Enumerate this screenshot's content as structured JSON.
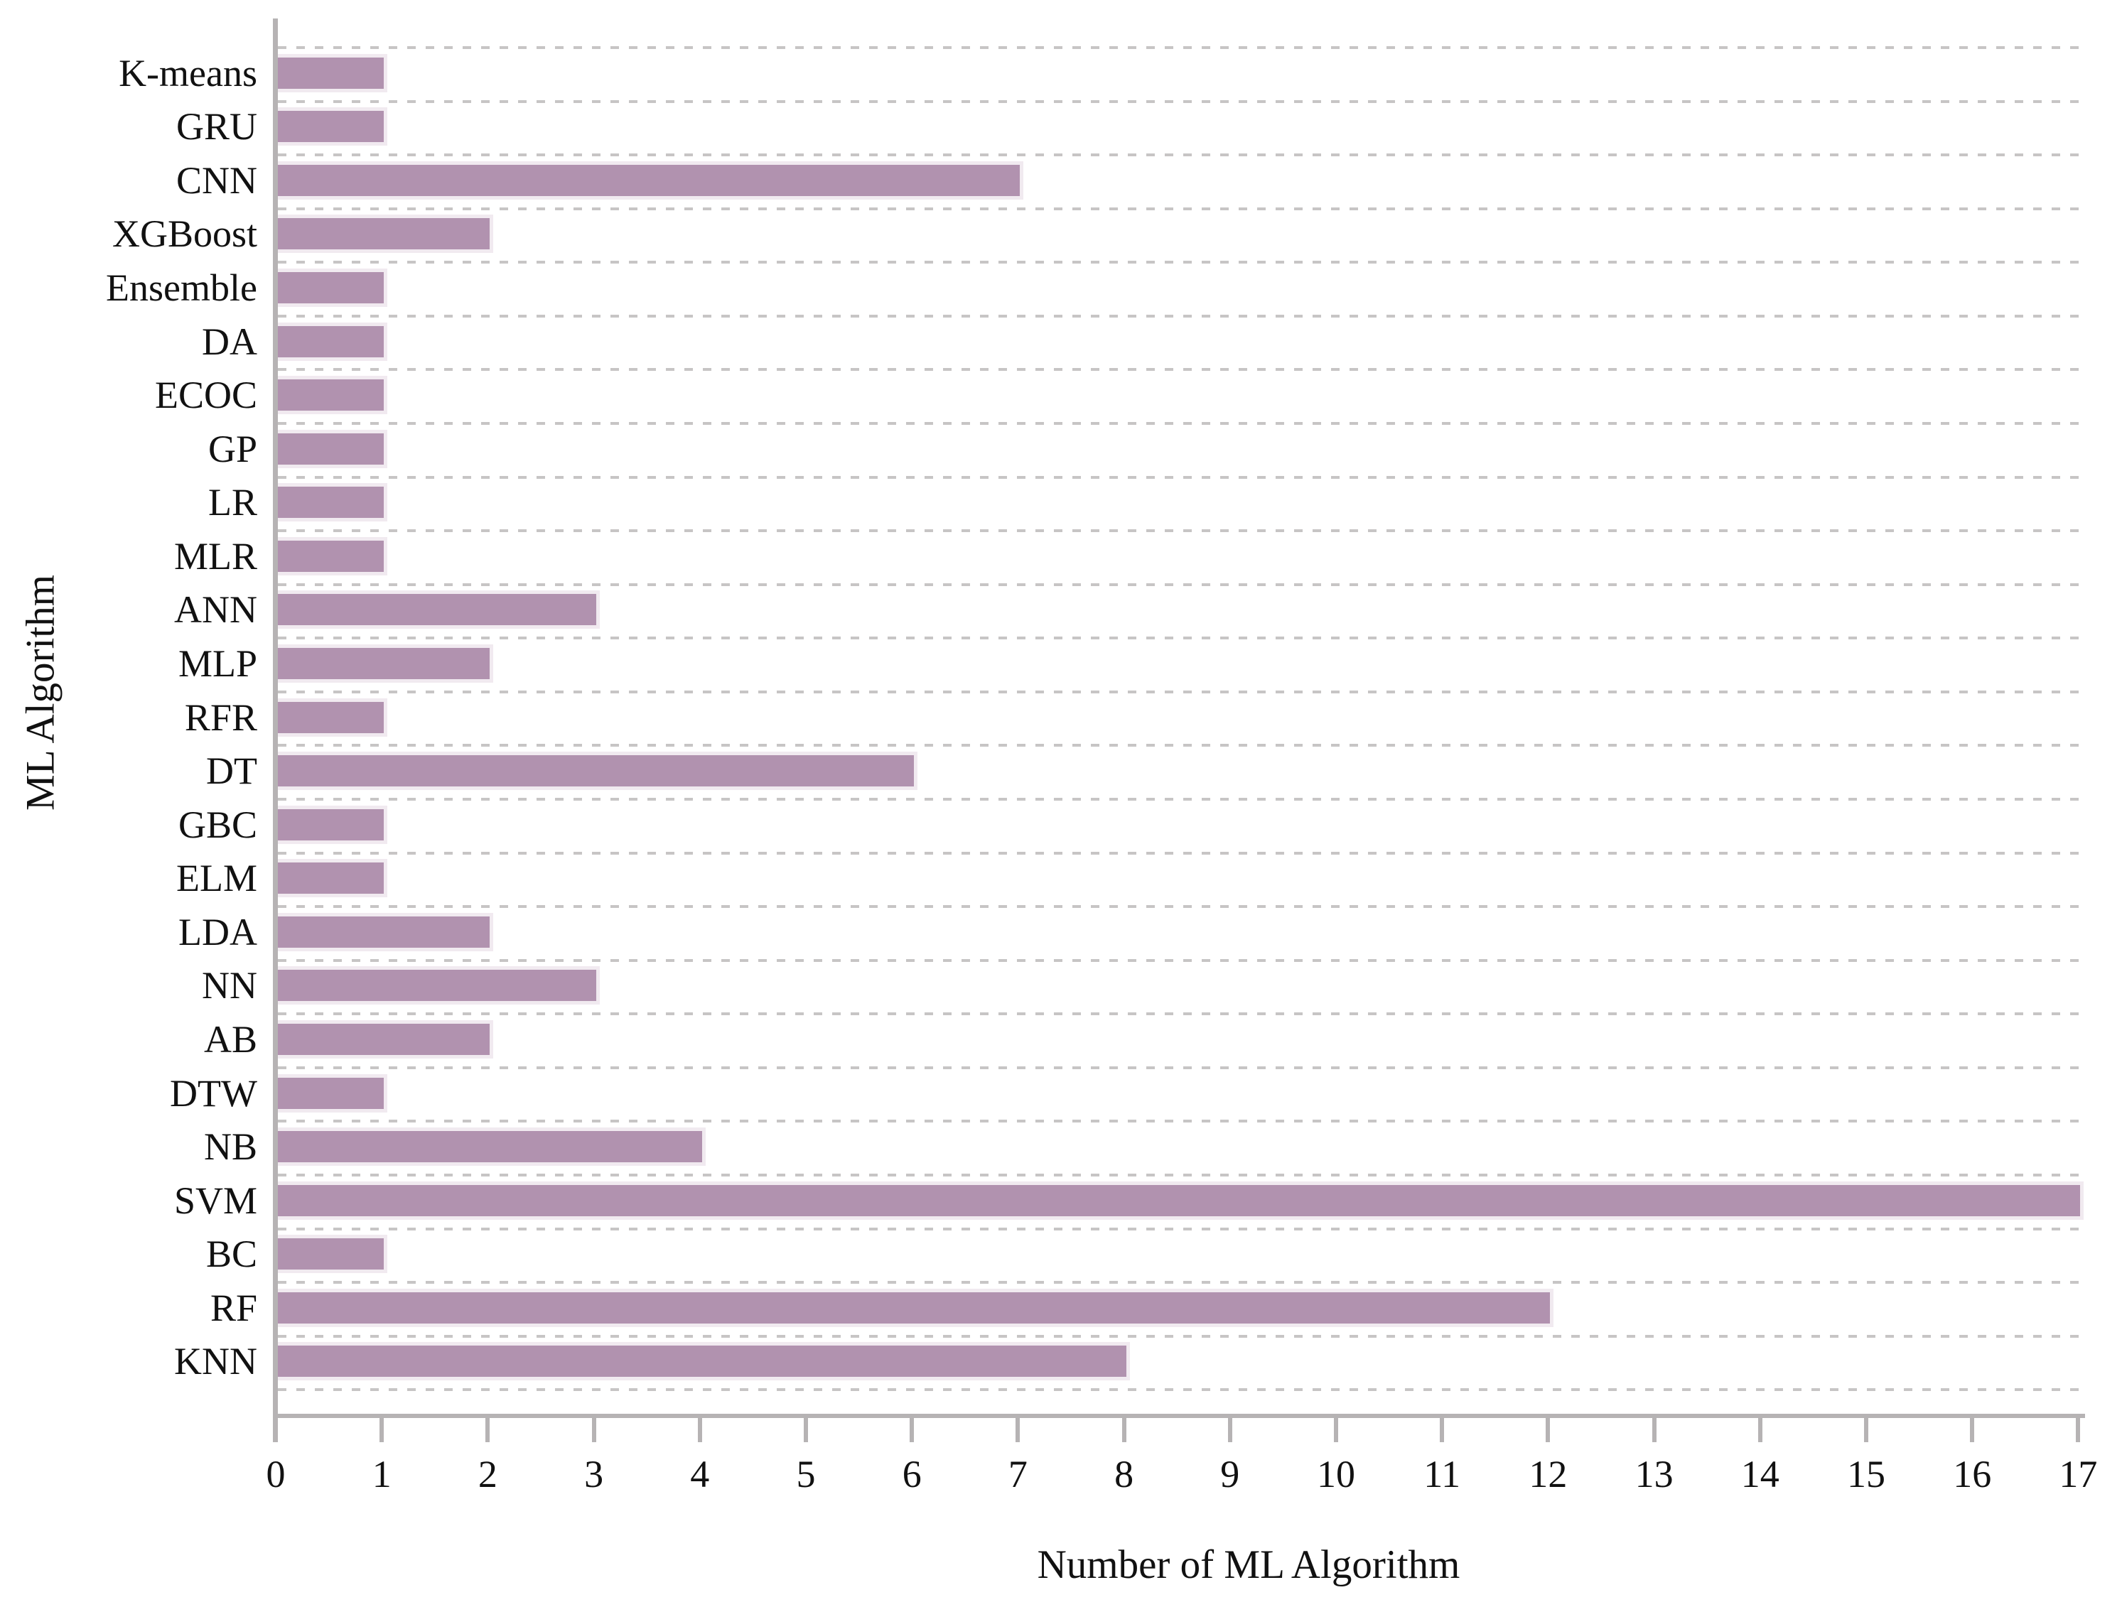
{
  "chart_data": {
    "type": "bar",
    "orientation": "horizontal",
    "title": "",
    "xlabel": "Number of ML Algorithm",
    "ylabel": "ML Algorithm",
    "categories": [
      "K-means",
      "GRU",
      "CNN",
      "XGBoost",
      "Ensemble",
      "DA",
      "ECOC",
      "GP",
      "LR",
      "MLR",
      "ANN",
      "MLP",
      "RFR",
      "DT",
      "GBC",
      "ELM",
      "LDA",
      "NN",
      "AB",
      "DTW",
      "NB",
      "SVM",
      "BC",
      "RF",
      "KNN"
    ],
    "values": [
      1,
      1,
      7,
      2,
      1,
      1,
      1,
      1,
      1,
      1,
      3,
      2,
      1,
      6,
      1,
      1,
      2,
      3,
      2,
      1,
      4,
      17,
      1,
      12,
      8
    ],
    "x_ticks": [
      0,
      1,
      2,
      3,
      4,
      5,
      6,
      7,
      8,
      9,
      10,
      11,
      12,
      13,
      14,
      15,
      16,
      17
    ],
    "xlim": [
      0,
      17
    ],
    "grid": "dashed horizontal lines between category rows",
    "legend": "none",
    "colors": {
      "bar_fill": "#b192af",
      "bar_halo": "#f1eaf0",
      "axis": "#b6b3b4",
      "gridline": "#c7c5c5",
      "text": "#111111",
      "background": "#ffffff"
    }
  }
}
